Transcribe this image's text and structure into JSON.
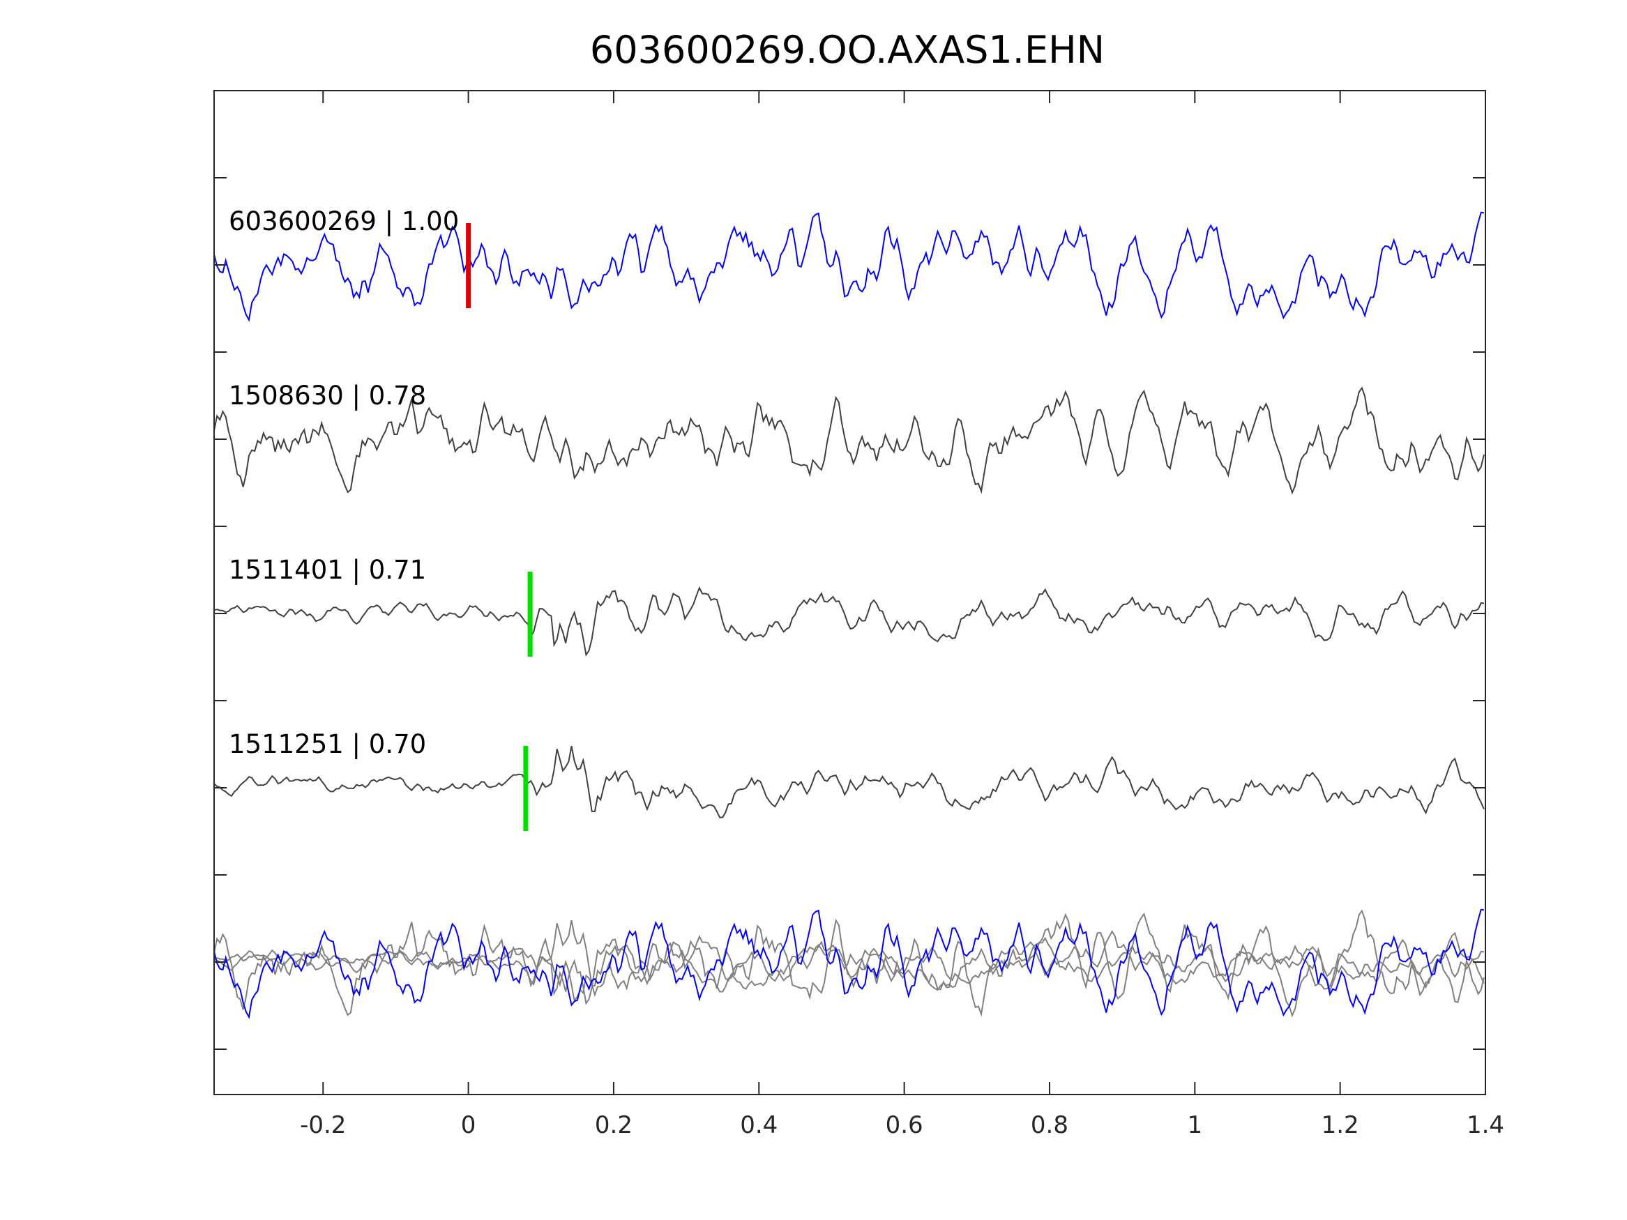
{
  "chart_data": {
    "type": "line",
    "title": "603600269.OO.AXAS1.EHN",
    "xlabel": "",
    "ylabel": "",
    "xlim": [
      -0.35,
      1.4
    ],
    "xticks": [
      "-0.2",
      "0",
      "0.2",
      "0.4",
      "0.6",
      "0.8",
      "1",
      "1.2",
      "1.4"
    ],
    "xtick_values": [
      -0.2,
      0,
      0.2,
      0.4,
      0.6,
      0.8,
      1,
      1.2,
      1.4
    ],
    "grid": false,
    "traces": [
      {
        "label": "603600269 | 1.00",
        "id": "603600269",
        "cc": 1.0,
        "color": "#0000ff",
        "pick_time": 0.0,
        "pick_color": "#e00000",
        "seed": 11
      },
      {
        "label": "1508630 | 0.78",
        "id": "1508630",
        "cc": 0.78,
        "color": "#404040",
        "pick_time": null,
        "pick_color": null,
        "seed": 23
      },
      {
        "label": "1511401 | 0.71",
        "id": "1511401",
        "cc": 0.71,
        "color": "#404040",
        "pick_time": 0.085,
        "pick_color": "#00e000",
        "seed": 37
      },
      {
        "label": "1511251 | 0.70",
        "id": "1511251",
        "cc": 0.7,
        "color": "#404040",
        "pick_time": 0.079,
        "pick_color": "#00e000",
        "seed": 51
      }
    ],
    "stack": {
      "description_color_master": "#0000ff",
      "others_color": "#808080"
    }
  }
}
